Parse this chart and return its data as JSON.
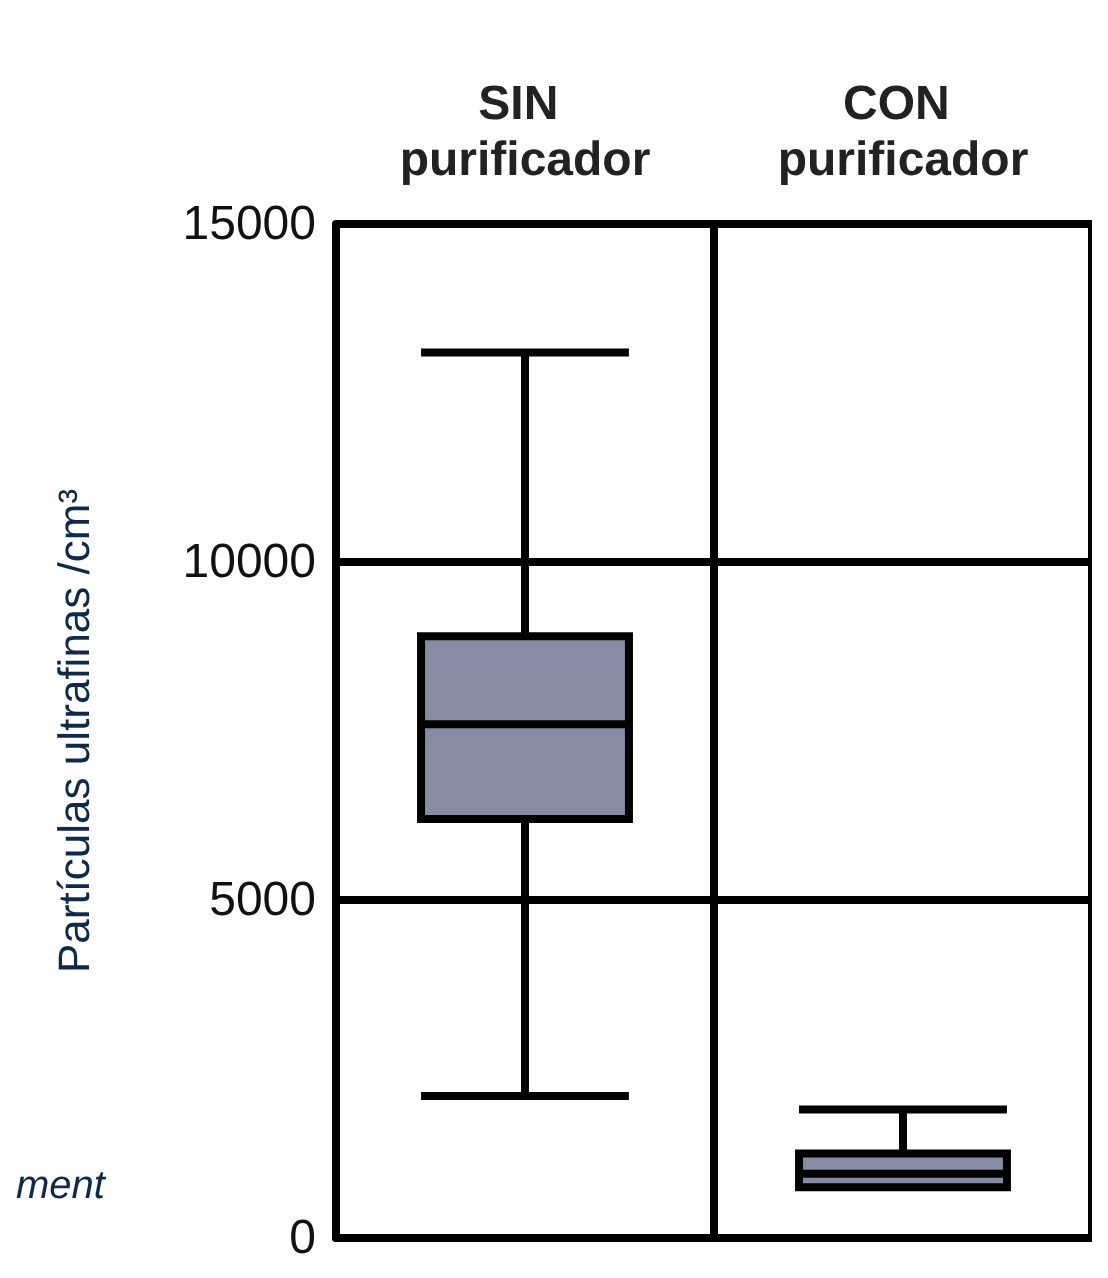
{
  "chart_data": {
    "type": "box",
    "categories": [
      "SIN purificador",
      "CON purificador"
    ],
    "ylabel": "Partículas ultrafinas /cm³",
    "ylim": [
      0,
      15000
    ],
    "yticks": [
      0,
      5000,
      10000,
      15000
    ],
    "grid": true,
    "color": "#868ca3",
    "boxes": [
      {
        "low": 2100,
        "q1": 6200,
        "median": 7600,
        "q3": 8900,
        "high": 13100
      },
      {
        "low": 750,
        "q1": 750,
        "median": 950,
        "q3": 1250,
        "high": 1900
      }
    ],
    "annotations": [
      "ment"
    ]
  }
}
